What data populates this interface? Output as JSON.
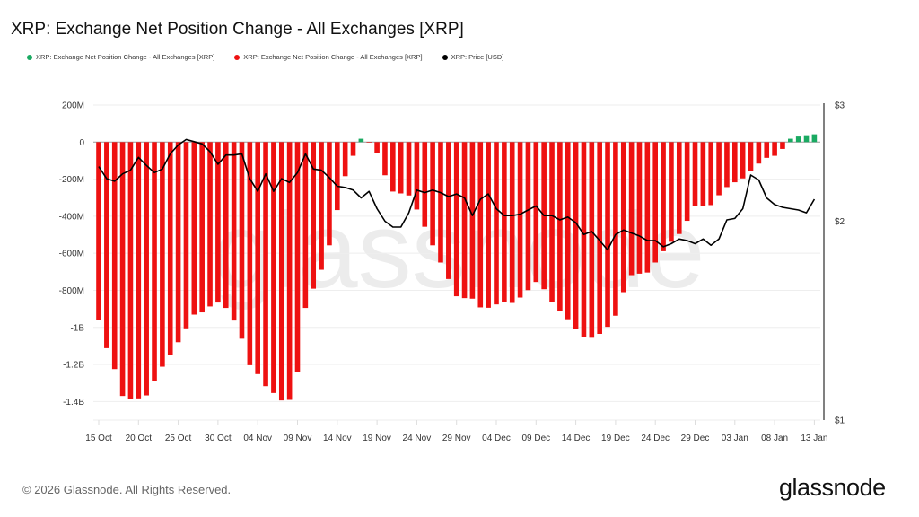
{
  "chart_data": {
    "type": "bar",
    "title": "XRP: Exchange Net Position Change - All Exchanges [XRP]",
    "legend": [
      {
        "name": "XRP: Exchange Net Position Change - All Exchanges [XRP]",
        "color": "#1aaa62"
      },
      {
        "name": "XRP: Exchange Net Position Change - All Exchanges [XRP]",
        "color": "#ee1111"
      },
      {
        "name": "XRP: Price [USD]",
        "color": "#000000"
      }
    ],
    "legend_position": "top-left",
    "x_start_date": "2025-10-15",
    "x_tick_labels": [
      "15 Oct",
      "20 Oct",
      "25 Oct",
      "30 Oct",
      "04 Nov",
      "09 Nov",
      "14 Nov",
      "19 Nov",
      "24 Nov",
      "29 Nov",
      "04 Dec",
      "09 Dec",
      "14 Dec",
      "19 Dec",
      "24 Dec",
      "29 Dec",
      "03 Jan",
      "08 Jan",
      "13 Jan"
    ],
    "y_left": {
      "unit": "XRP (millions)",
      "ylim": [
        -1500,
        200
      ],
      "ticks": [
        200,
        0,
        -200,
        -400,
        -600,
        -800,
        -1000,
        -1200,
        -1400
      ],
      "tick_labels": [
        "200M",
        "0",
        "-200M",
        "-400M",
        "-600M",
        "-800M",
        "-1B",
        "-1.2B",
        "-1.4B"
      ]
    },
    "y_right": {
      "scale": "log",
      "ylim": [
        1,
        3
      ],
      "ticks": [
        3,
        2,
        1
      ],
      "tick_labels": [
        "$3",
        "$2",
        "$1"
      ]
    },
    "grid": true,
    "positive_color": "#1aaa62",
    "negative_color": "#ee1111",
    "price_color": "#000000",
    "series": [
      {
        "name": "XRP: Exchange Net Position Change - All Exchanges [XRP]",
        "axis": "left",
        "type": "bar",
        "values": [
          -960,
          -1112,
          -1225,
          -1370,
          -1386,
          -1383,
          -1367,
          -1290,
          -1212,
          -1150,
          -1080,
          -1005,
          -931,
          -919,
          -887,
          -866,
          -895,
          -963,
          -1061,
          -1204,
          -1252,
          -1317,
          -1354,
          -1394,
          -1391,
          -1241,
          -895,
          -791,
          -689,
          -557,
          -367,
          -184,
          -74,
          18,
          -2,
          -58,
          -179,
          -267,
          -277,
          -288,
          -364,
          -457,
          -557,
          -650,
          -739,
          -832,
          -842,
          -845,
          -892,
          -894,
          -876,
          -861,
          -868,
          -839,
          -799,
          -755,
          -794,
          -863,
          -914,
          -956,
          -1008,
          -1053,
          -1056,
          -1035,
          -997,
          -937,
          -810,
          -718,
          -710,
          -704,
          -650,
          -589,
          -538,
          -496,
          -425,
          -345,
          -343,
          -340,
          -287,
          -243,
          -217,
          -196,
          -156,
          -116,
          -85,
          -74,
          -37,
          18,
          30,
          37,
          42
        ]
      },
      {
        "name": "XRP: Price [USD]",
        "axis": "right",
        "type": "line",
        "values": [
          2.42,
          2.32,
          2.3,
          2.36,
          2.39,
          2.5,
          2.43,
          2.37,
          2.4,
          2.53,
          2.61,
          2.66,
          2.64,
          2.62,
          2.55,
          2.44,
          2.52,
          2.52,
          2.53,
          2.32,
          2.22,
          2.36,
          2.22,
          2.32,
          2.29,
          2.37,
          2.53,
          2.4,
          2.39,
          2.33,
          2.26,
          2.25,
          2.23,
          2.17,
          2.22,
          2.09,
          2.0,
          1.96,
          1.96,
          2.06,
          2.23,
          2.21,
          2.23,
          2.21,
          2.18,
          2.2,
          2.17,
          2.04,
          2.16,
          2.2,
          2.09,
          2.04,
          2.04,
          2.05,
          2.08,
          2.11,
          2.04,
          2.04,
          2.01,
          2.03,
          1.99,
          1.91,
          1.93,
          1.87,
          1.81,
          1.91,
          1.94,
          1.92,
          1.9,
          1.87,
          1.87,
          1.83,
          1.85,
          1.88,
          1.87,
          1.85,
          1.88,
          1.84,
          1.88,
          2.01,
          2.02,
          2.09,
          2.35,
          2.31,
          2.17,
          2.12,
          2.1,
          2.09,
          2.08,
          2.06,
          2.16
        ]
      }
    ]
  },
  "watermark": "glassnode",
  "footer": {
    "copyright": "© 2026 Glassnode. All Rights Reserved.",
    "logo": "glassnode"
  }
}
